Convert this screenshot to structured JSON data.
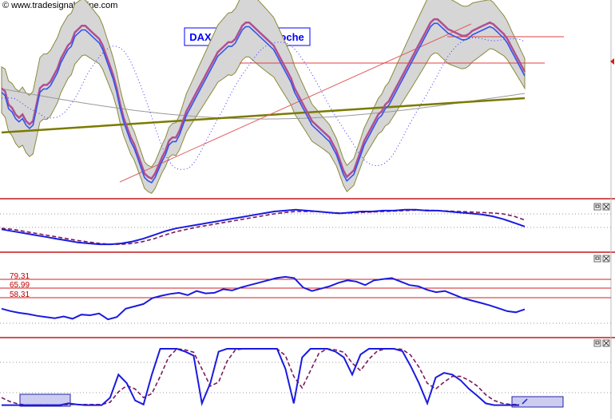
{
  "watermark": "© www.tradesignalonline.com",
  "chart_data": [
    {
      "type": "line",
      "title": "DAX Perf. Index Woche",
      "series": [
        {
          "role": "price",
          "values": [
            0.6,
            0.58,
            0.5,
            0.48,
            0.44,
            0.42,
            0.44,
            0.4,
            0.38,
            0.4,
            0.5,
            0.6,
            0.62,
            0.62,
            0.64,
            0.68,
            0.72,
            0.78,
            0.82,
            0.86,
            0.88,
            0.94,
            0.96,
            0.98,
            0.98,
            0.96,
            0.94,
            0.92,
            0.9,
            0.86,
            0.8,
            0.74,
            0.68,
            0.6,
            0.5,
            0.42,
            0.36,
            0.3,
            0.26,
            0.2,
            0.14,
            0.08,
            0.06,
            0.05,
            0.08,
            0.13,
            0.18,
            0.22,
            0.28,
            0.3,
            0.3,
            0.34,
            0.4,
            0.46,
            0.5,
            0.54,
            0.58,
            0.62,
            0.66,
            0.7,
            0.74,
            0.78,
            0.82,
            0.84,
            0.86,
            0.88,
            0.88,
            0.9,
            0.94,
            0.98,
            1.0,
            1.0,
            0.98,
            0.96,
            0.94,
            0.92,
            0.9,
            0.88,
            0.86,
            0.82,
            0.78,
            0.74,
            0.7,
            0.66,
            0.6,
            0.56,
            0.52,
            0.48,
            0.44,
            0.4,
            0.38,
            0.36,
            0.34,
            0.32,
            0.3,
            0.26,
            0.22,
            0.16,
            0.1,
            0.06,
            0.08,
            0.1,
            0.16,
            0.22,
            0.28,
            0.32,
            0.36,
            0.4,
            0.44,
            0.46,
            0.5,
            0.52,
            0.56,
            0.6,
            0.64,
            0.68,
            0.72,
            0.76,
            0.8,
            0.84,
            0.88,
            0.92,
            0.96,
            1.0,
            1.02,
            1.02,
            1.0,
            0.98,
            0.96,
            0.95,
            0.94,
            0.93,
            0.92,
            0.92,
            0.93,
            0.95,
            0.96,
            0.97,
            0.98,
            0.99,
            1.0,
            0.99,
            0.97,
            0.95,
            0.93,
            0.9,
            0.86,
            0.82,
            0.78,
            0.74,
            0.7
          ]
        }
      ]
    },
    {
      "type": "line",
      "series": [
        {
          "role": "oscillator",
          "values": [
            0.52,
            0.48,
            0.44,
            0.4,
            0.36,
            0.32,
            0.28,
            0.24,
            0.22,
            0.2,
            0.2,
            0.22,
            0.26,
            0.32,
            0.4,
            0.48,
            0.54,
            0.58,
            0.62,
            0.66,
            0.7,
            0.74,
            0.78,
            0.82,
            0.86,
            0.9,
            0.92,
            0.94,
            0.92,
            0.9,
            0.88,
            0.86,
            0.88,
            0.9,
            0.9,
            0.92,
            0.92,
            0.94,
            0.94,
            0.92,
            0.92,
            0.9,
            0.88,
            0.86,
            0.84,
            0.8,
            0.74,
            0.66,
            0.58
          ]
        },
        {
          "role": "signal",
          "values": [
            0.54,
            0.52,
            0.48,
            0.44,
            0.4,
            0.36,
            0.32,
            0.28,
            0.25,
            0.22,
            0.2,
            0.2,
            0.22,
            0.26,
            0.32,
            0.4,
            0.47,
            0.52,
            0.57,
            0.61,
            0.65,
            0.69,
            0.73,
            0.77,
            0.81,
            0.85,
            0.88,
            0.9,
            0.9,
            0.9,
            0.88,
            0.87,
            0.87,
            0.88,
            0.89,
            0.9,
            0.91,
            0.92,
            0.93,
            0.93,
            0.92,
            0.91,
            0.9,
            0.89,
            0.88,
            0.87,
            0.85,
            0.8,
            0.72
          ]
        }
      ]
    },
    {
      "type": "line",
      "levels": [
        79.31,
        65.99,
        58.31
      ],
      "ylim": [
        0,
        100
      ],
      "series": [
        {
          "role": "rsi",
          "values": [
            34,
            30,
            27,
            25,
            22,
            20,
            18,
            21,
            17,
            24,
            23,
            26,
            16,
            20,
            34,
            38,
            42,
            52,
            56,
            59,
            61,
            57,
            64,
            60,
            61,
            67,
            65,
            70,
            74,
            78,
            82,
            86,
            88,
            86,
            70,
            64,
            68,
            72,
            78,
            82,
            80,
            74,
            82,
            84,
            86,
            80,
            74,
            72,
            66,
            62,
            64,
            58,
            52,
            48,
            44,
            40,
            35,
            30,
            28,
            33
          ]
        }
      ]
    },
    {
      "type": "line",
      "ylim": [
        0,
        100
      ],
      "series": [
        {
          "role": "stochastic",
          "values": [
            2,
            2,
            2,
            2,
            2,
            2,
            2,
            2,
            5,
            3,
            2,
            2,
            2,
            15,
            55,
            40,
            10,
            3,
            55,
            100,
            100,
            100,
            95,
            88,
            5,
            40,
            95,
            100,
            100,
            100,
            100,
            100,
            100,
            100,
            65,
            5,
            85,
            100,
            100,
            100,
            95,
            85,
            55,
            90,
            100,
            100,
            100,
            100,
            96,
            70,
            40,
            5,
            50,
            58,
            55,
            45,
            30,
            18,
            5,
            2,
            2,
            2,
            2
          ]
        },
        {
          "role": "signal",
          "values": [
            15,
            8,
            4,
            2,
            2,
            2,
            2,
            2,
            3,
            3,
            3,
            3,
            3,
            7,
            25,
            36,
            30,
            15,
            22,
            52,
            85,
            100,
            98,
            94,
            65,
            35,
            42,
            78,
            98,
            100,
            100,
            100,
            100,
            100,
            88,
            52,
            32,
            62,
            92,
            100,
            98,
            94,
            75,
            62,
            82,
            96,
            100,
            100,
            99,
            89,
            68,
            40,
            30,
            42,
            52,
            52,
            45,
            35,
            20,
            10,
            5,
            3,
            3
          ]
        }
      ]
    }
  ]
}
